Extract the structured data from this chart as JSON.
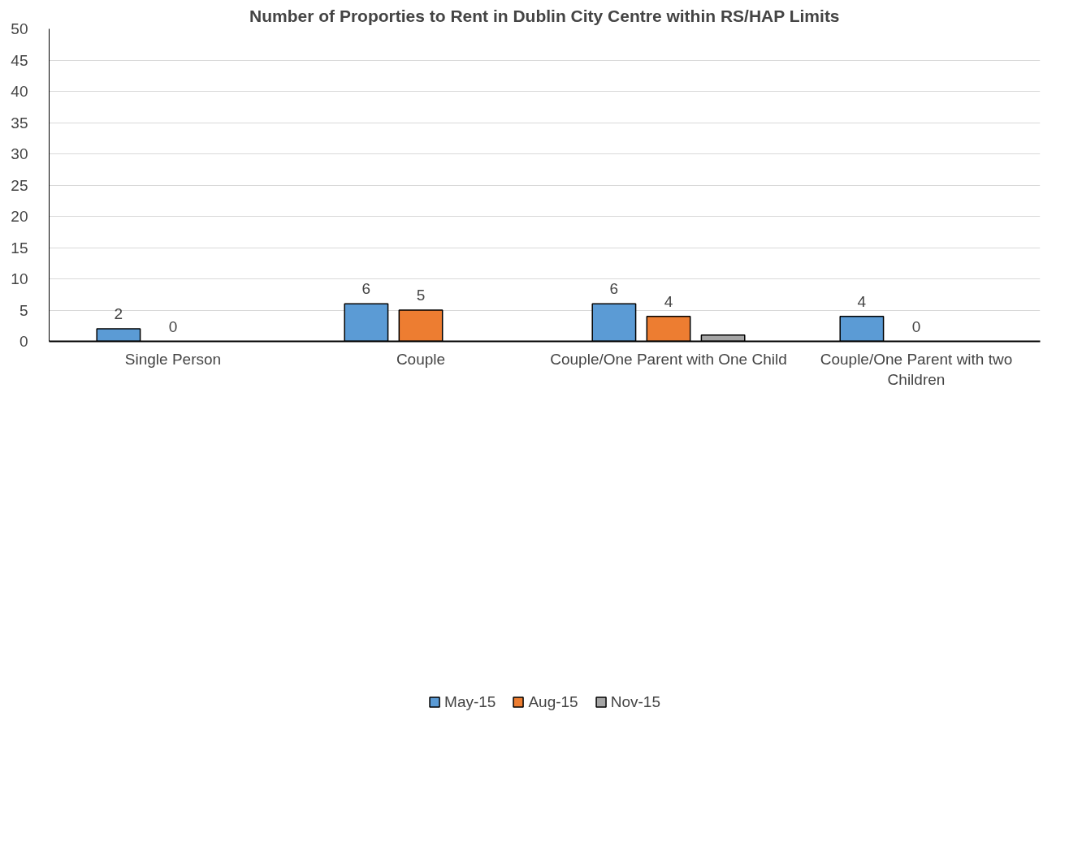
{
  "chart_data": {
    "type": "bar",
    "title": "Number of Proporties to Rent in Dublin City Centre within RS/HAP Limits",
    "categories": [
      "Single Person",
      "Couple",
      "Couple/One Parent with One Child",
      "Couple/One Parent with two Children"
    ],
    "series": [
      {
        "name": "May-15",
        "color": "#5b9bd5",
        "values": [
          2,
          6,
          6,
          4
        ],
        "value_labels": [
          "2",
          "6",
          "6",
          "4"
        ]
      },
      {
        "name": "Aug-15",
        "color": "#ed7d31",
        "values": [
          0,
          5,
          4,
          0
        ],
        "value_labels": [
          "0",
          "5",
          "4",
          "0"
        ]
      },
      {
        "name": "Nov-15",
        "color": "#a5a5a5",
        "values": [
          null,
          null,
          1,
          null
        ],
        "value_labels": [
          null,
          null,
          null,
          null
        ]
      }
    ],
    "ylim": [
      0,
      50
    ],
    "yticks": [
      0,
      5,
      10,
      15,
      20,
      25,
      30,
      35,
      40,
      45,
      50
    ],
    "grid": "y",
    "legend": "bottom"
  }
}
